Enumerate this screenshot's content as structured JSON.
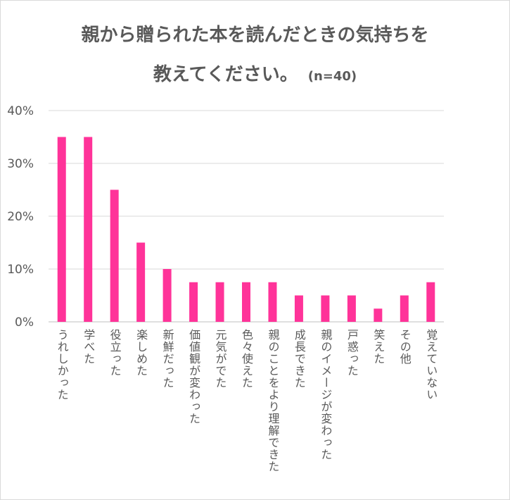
{
  "chart_data": {
    "type": "bar",
    "title": "親から贈られた本を読んだときの気持ちを教えてください。",
    "title_line1": "親から贈られた本を読んだときの気持ちを",
    "title_line2": "教えてください。",
    "subtitle": "(n=40)",
    "categories": [
      "うれしかった",
      "学べた",
      "役立った",
      "楽しめた",
      "新鮮だった",
      "価値観が変わった",
      "元気がでた",
      "色々使えた",
      "親のことをより理解できた",
      "成長できた",
      "親のイメージが変わった",
      "戸惑った",
      "笑えた",
      "その他",
      "覚えていない"
    ],
    "values": [
      35,
      35,
      25,
      15,
      10,
      7.5,
      7.5,
      7.5,
      7.5,
      5,
      5,
      5,
      2.5,
      5,
      7.5
    ],
    "ylim": [
      0,
      40
    ],
    "yticks": [
      "0%",
      "10%",
      "20%",
      "30%",
      "40%"
    ],
    "grid": true,
    "bar_color": "#ff3399",
    "xlabel": "",
    "ylabel": ""
  }
}
